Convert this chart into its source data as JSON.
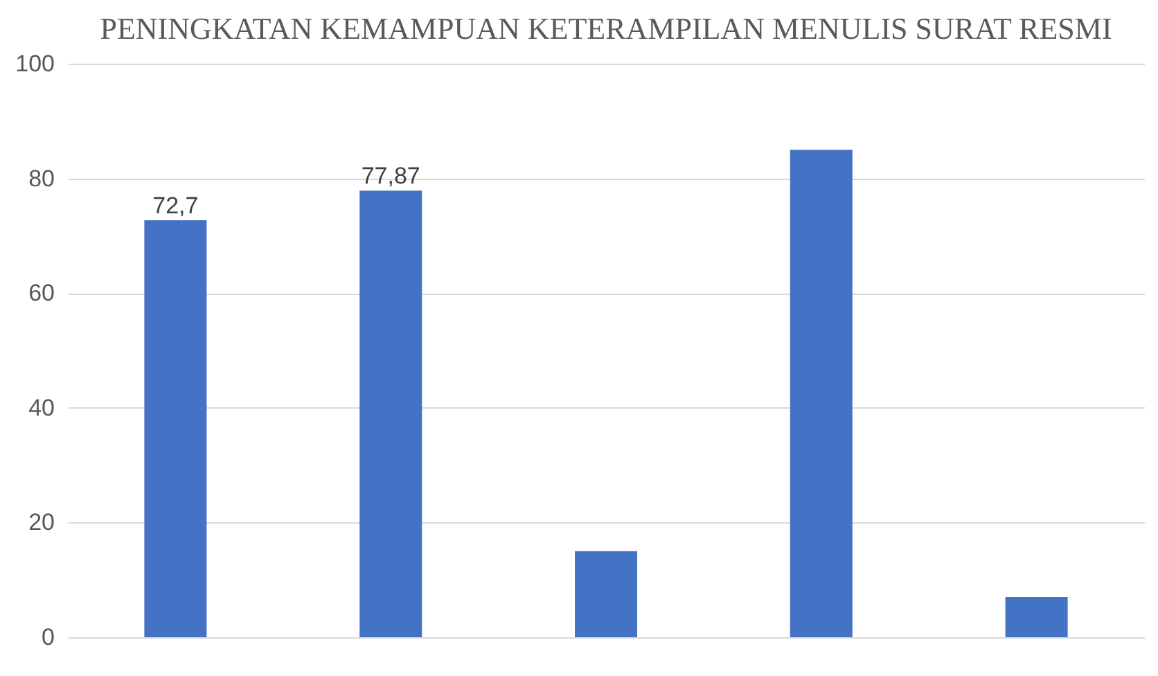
{
  "chart_data": {
    "type": "bar",
    "title": "PENINGKATAN KEMAMPUAN KETERAMPILAN MENULIS SURAT RESMI",
    "categories": [
      null,
      null,
      null,
      null,
      null
    ],
    "values": [
      72.7,
      77.87,
      15,
      85,
      7
    ],
    "value_labels": [
      "72,7",
      "77,87",
      null,
      null,
      null
    ],
    "color": "#4472c4",
    "ylim": [
      0,
      100
    ],
    "yticks": [
      0,
      20,
      40,
      60,
      80,
      100
    ],
    "grid": "y"
  }
}
